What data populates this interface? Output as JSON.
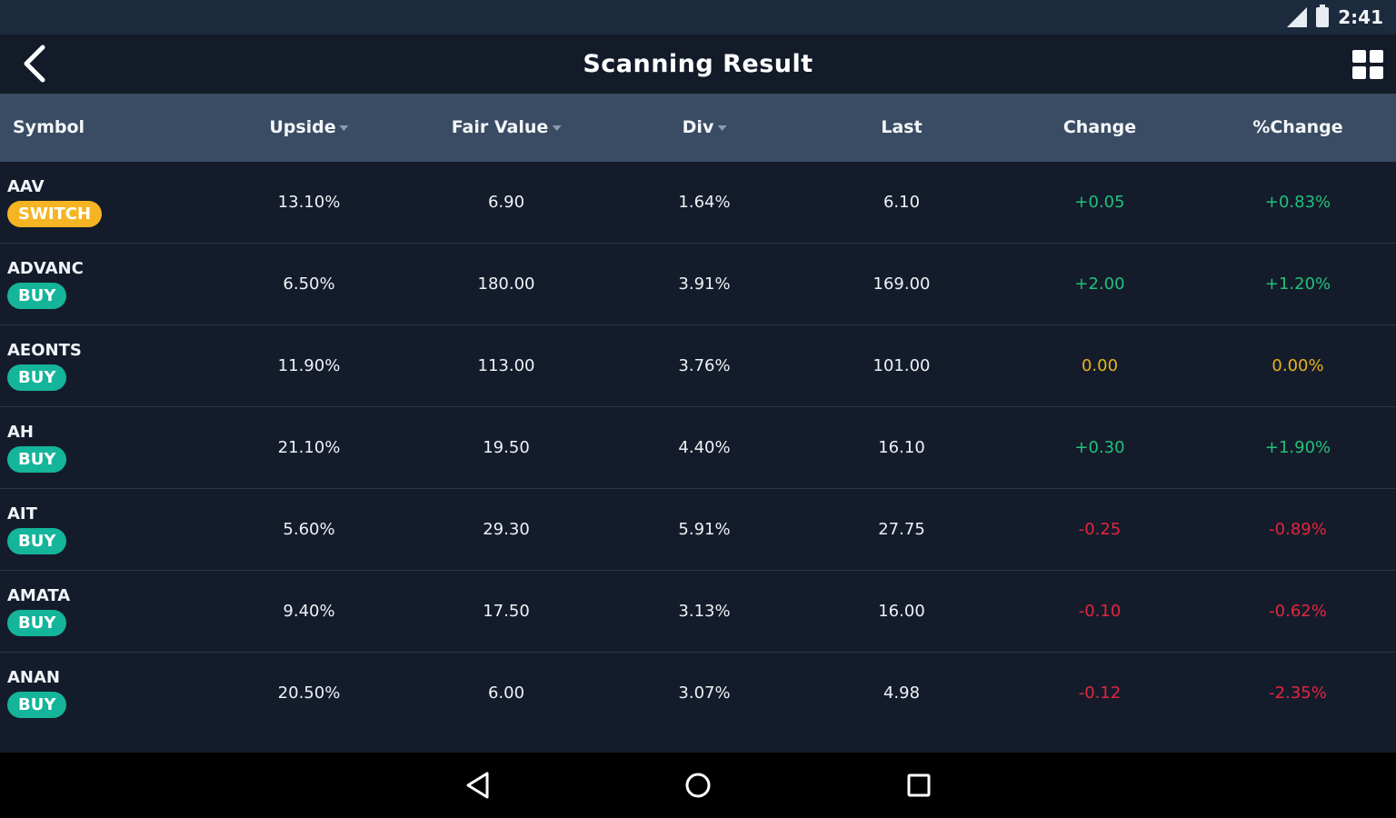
{
  "status_bar": {
    "time": "2:41",
    "icons": [
      "signal-icon",
      "battery-icon"
    ]
  },
  "app_bar": {
    "title": "Scanning Result",
    "back_icon": "chevron-left-icon",
    "grid_icon": "grid-view-icon"
  },
  "columns": [
    {
      "key": "symbol",
      "label": "Symbol",
      "sortable": false
    },
    {
      "key": "upside",
      "label": "Upside",
      "sortable": true
    },
    {
      "key": "fair_value",
      "label": "Fair Value",
      "sortable": true
    },
    {
      "key": "div",
      "label": "Div",
      "sortable": true
    },
    {
      "key": "last",
      "label": "Last",
      "sortable": false
    },
    {
      "key": "change",
      "label": "Change",
      "sortable": false
    },
    {
      "key": "pct_change",
      "label": "%Change",
      "sortable": false
    }
  ],
  "colors": {
    "positive": "#22c07a",
    "neutral": "#e8b21e",
    "negative": "#e2263e",
    "buy_badge": "#14b59a",
    "switch_badge": "#f5b522"
  },
  "rows": [
    {
      "symbol": "AAV",
      "signal": "SWITCH",
      "upside": "13.10%",
      "fair_value": "6.90",
      "div": "1.64%",
      "last": "6.10",
      "change": "+0.05",
      "pct_change": "+0.83%",
      "trend": "positive"
    },
    {
      "symbol": "ADVANC",
      "signal": "BUY",
      "upside": "6.50%",
      "fair_value": "180.00",
      "div": "3.91%",
      "last": "169.00",
      "change": "+2.00",
      "pct_change": "+1.20%",
      "trend": "positive"
    },
    {
      "symbol": "AEONTS",
      "signal": "BUY",
      "upside": "11.90%",
      "fair_value": "113.00",
      "div": "3.76%",
      "last": "101.00",
      "change": "0.00",
      "pct_change": "0.00%",
      "trend": "neutral"
    },
    {
      "symbol": "AH",
      "signal": "BUY",
      "upside": "21.10%",
      "fair_value": "19.50",
      "div": "4.40%",
      "last": "16.10",
      "change": "+0.30",
      "pct_change": "+1.90%",
      "trend": "positive"
    },
    {
      "symbol": "AIT",
      "signal": "BUY",
      "upside": "5.60%",
      "fair_value": "29.30",
      "div": "5.91%",
      "last": "27.75",
      "change": "-0.25",
      "pct_change": "-0.89%",
      "trend": "negative"
    },
    {
      "symbol": "AMATA",
      "signal": "BUY",
      "upside": "9.40%",
      "fair_value": "17.50",
      "div": "3.13%",
      "last": "16.00",
      "change": "-0.10",
      "pct_change": "-0.62%",
      "trend": "negative"
    },
    {
      "symbol": "ANAN",
      "signal": "BUY",
      "upside": "20.50%",
      "fair_value": "6.00",
      "div": "3.07%",
      "last": "4.98",
      "change": "-0.12",
      "pct_change": "-2.35%",
      "trend": "negative"
    }
  ],
  "nav_bar": {
    "icons": [
      "nav-back-icon",
      "nav-home-icon",
      "nav-recents-icon"
    ]
  }
}
